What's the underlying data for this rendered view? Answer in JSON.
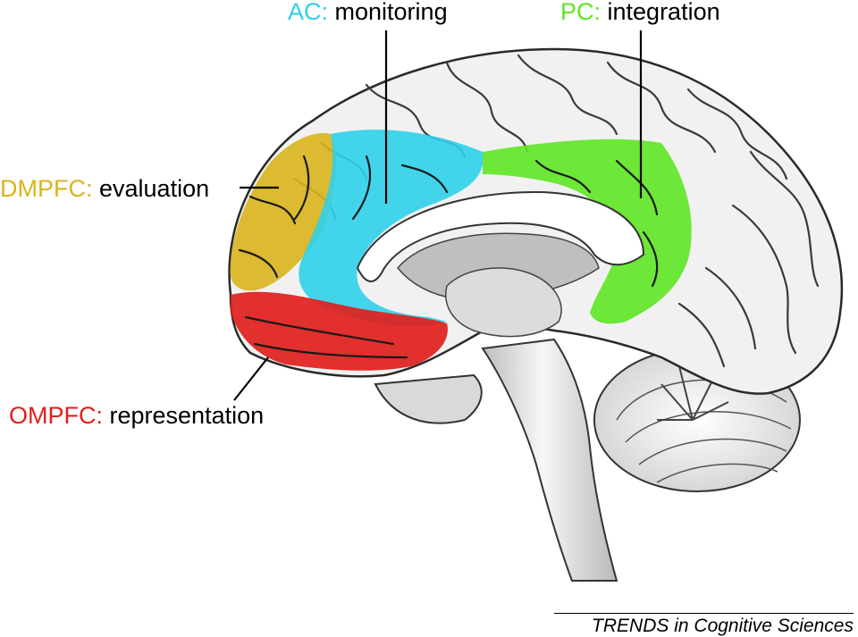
{
  "colors": {
    "ac": "#2fd0ea",
    "pc": "#5ee624",
    "dmpfc": "#d9b41c",
    "ompfc": "#e0201c",
    "brain_fill": "#f1f1f1",
    "brain_stroke": "#2a2a2a"
  },
  "labels": {
    "ac": {
      "abbr": "AC:",
      "text": " monitoring"
    },
    "pc": {
      "abbr": "PC:",
      "text": " integration"
    },
    "dmpfc": {
      "abbr": "DMPFC:",
      "text": " evaluation"
    },
    "ompfc": {
      "abbr": "OMPFC:",
      "text": " representation"
    }
  },
  "credit": "TRENDS in Cognitive Sciences"
}
